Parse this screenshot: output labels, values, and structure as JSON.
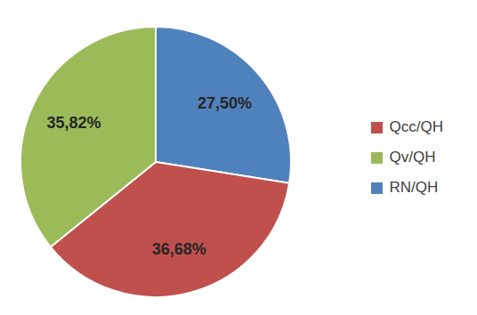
{
  "chart_data": {
    "type": "pie",
    "categories": [
      "RN/QH",
      "Qcc/QH",
      "Qv/QH"
    ],
    "values": [
      27.5,
      36.68,
      35.82
    ],
    "value_labels": [
      "27,50%",
      "36,68%",
      "35,82%"
    ],
    "colors": [
      "#4f81bd",
      "#c0504d",
      "#9bbb59"
    ],
    "data_labels": true,
    "legend": "right"
  }
}
